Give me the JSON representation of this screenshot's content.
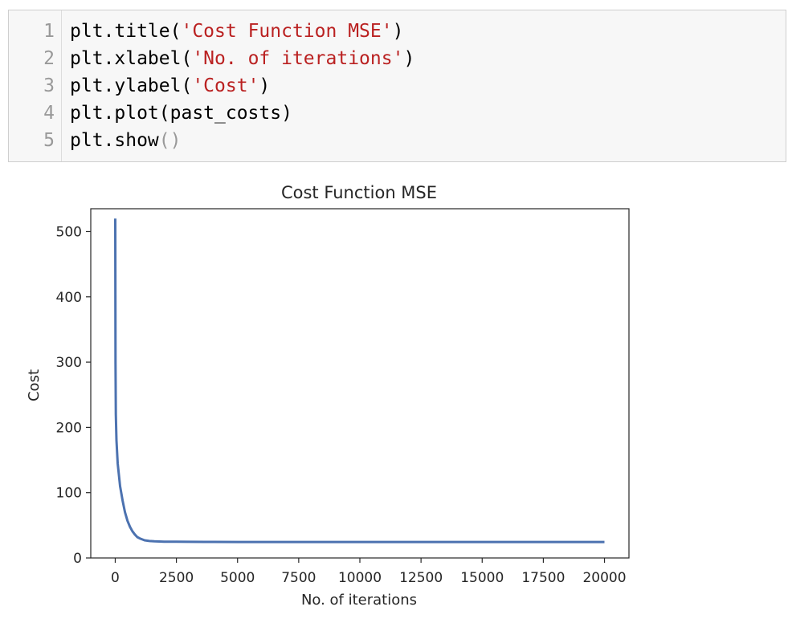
{
  "code_cell": {
    "lines": [
      {
        "number": "1",
        "prefix": "plt.title(",
        "string": "'Cost Function MSE'",
        "suffix": ")"
      },
      {
        "number": "2",
        "prefix": "plt.xlabel(",
        "string": "'No. of iterations'",
        "suffix": ")"
      },
      {
        "number": "3",
        "prefix": "plt.ylabel(",
        "string": "'Cost'",
        "suffix": ")"
      },
      {
        "number": "4",
        "prefix": "plt.plot(past_costs)",
        "string": "",
        "suffix": ""
      },
      {
        "number": "5",
        "prefix": "plt.show",
        "string": "",
        "suffix": "()"
      }
    ]
  },
  "chart_data": {
    "type": "line",
    "title": "Cost Function MSE",
    "xlabel": "No. of iterations",
    "ylabel": "Cost",
    "xlim": [
      -1000,
      21000
    ],
    "ylim": [
      0,
      535
    ],
    "xticks": [
      0,
      2500,
      5000,
      7500,
      10000,
      12500,
      15000,
      17500,
      20000
    ],
    "yticks": [
      0,
      100,
      200,
      300,
      400,
      500
    ],
    "series": [
      {
        "color": "#4c72b0",
        "x": [
          0,
          10,
          25,
          50,
          100,
          200,
          300,
          400,
          500,
          600,
          700,
          800,
          900,
          1000,
          1200,
          1400,
          1600,
          1800,
          2000,
          2500,
          3000,
          4000,
          5000,
          7500,
          10000,
          12500,
          15000,
          17500,
          20000
        ],
        "y": [
          520,
          300,
          220,
          180,
          145,
          110,
          88,
          70,
          57,
          48,
          41,
          36,
          32,
          30,
          27,
          26,
          25.5,
          25.2,
          25,
          24.8,
          24.7,
          24.6,
          24.5,
          24.5,
          24.5,
          24.5,
          24.5,
          24.5,
          24.5
        ]
      }
    ]
  }
}
